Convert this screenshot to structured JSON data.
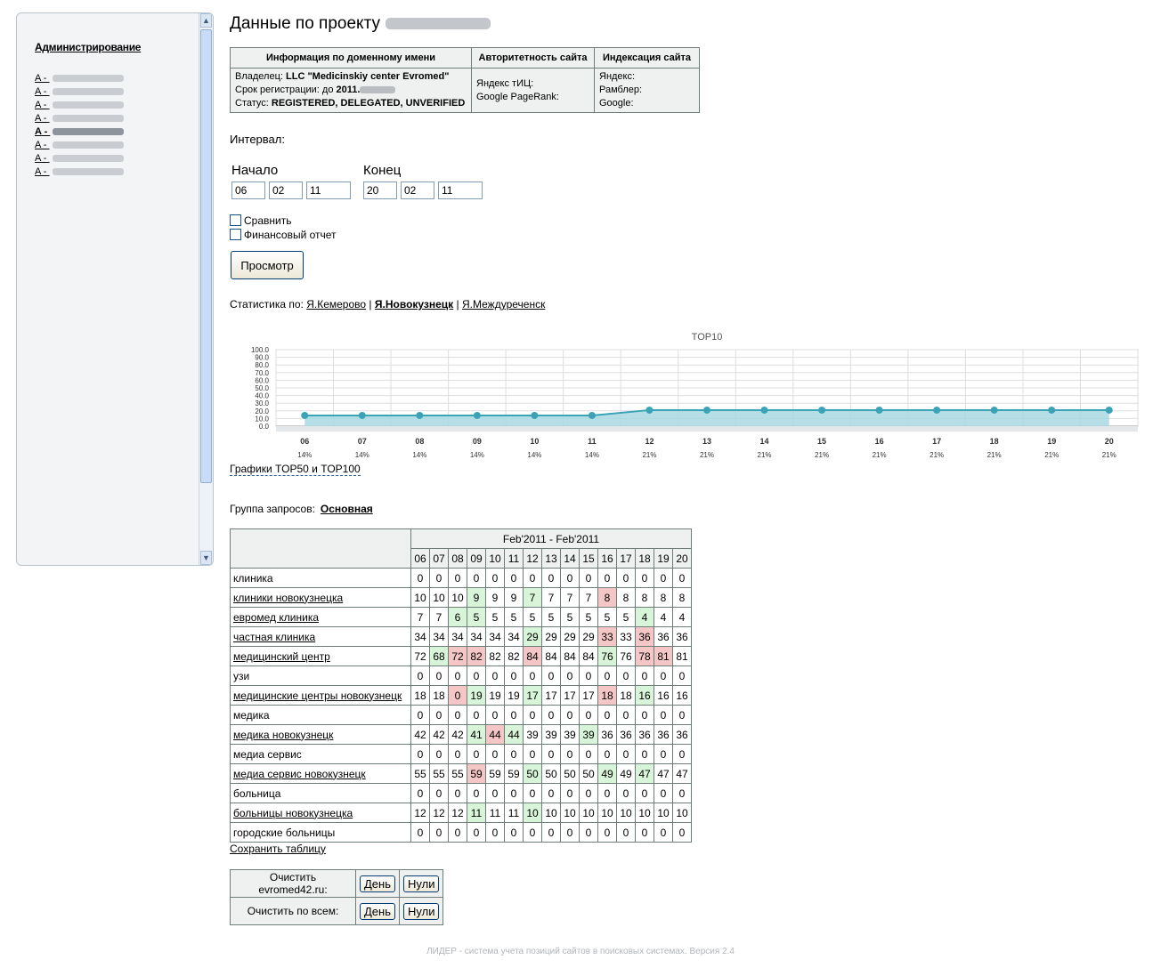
{
  "sidebar": {
    "title": "Администрирование",
    "items": [
      {
        "prefix": "A - ",
        "current": false
      },
      {
        "prefix": "A - ",
        "current": false
      },
      {
        "prefix": "A - ",
        "current": false
      },
      {
        "prefix": "A - ",
        "current": false
      },
      {
        "prefix": "A - ",
        "current": true
      },
      {
        "prefix": "A - ",
        "current": false
      },
      {
        "prefix": "A - ",
        "current": false
      },
      {
        "prefix": "A - ",
        "current": false
      }
    ]
  },
  "page": {
    "title": "Данные по проекту"
  },
  "info": {
    "headers": [
      "Информация по доменному имени",
      "Авторитетность сайта",
      "Индексация сайта"
    ],
    "owner_label": "Владелец:",
    "owner_value": "LLC \"Medicinskiy center Evromed\"",
    "reg_label": "Срок регистрации: до",
    "reg_value": "2011.",
    "status_label": "Статус:",
    "status_value": "REGISTERED, DELEGATED, UNVERIFIED",
    "auth1": "Яндекс тИЦ:",
    "auth2": "Google PageRank:",
    "idx1": "Яндекс:",
    "idx2": "Рамблер:",
    "idx3": "Google:"
  },
  "interval": {
    "label": "Интервал:",
    "start_label": "Начало",
    "end_label": "Конец",
    "start": [
      "06",
      "02",
      "11"
    ],
    "end": [
      "20",
      "02",
      "11"
    ],
    "compare_label": "Сравнить",
    "finance_label": "Финансовый отчет",
    "view_button": "Просмотр"
  },
  "stats": {
    "prefix": "Статистика по:",
    "links": [
      "Я.Кемерово",
      "Я.Новокузнецк",
      "Я.Междуреченск"
    ],
    "sep": "|"
  },
  "chart_data": {
    "type": "area",
    "title": "TOP10",
    "x": [
      "06",
      "07",
      "08",
      "09",
      "10",
      "11",
      "12",
      "13",
      "14",
      "15",
      "16",
      "17",
      "18",
      "19",
      "20"
    ],
    "values": [
      14,
      14,
      14,
      14,
      14,
      14,
      21,
      21,
      21,
      21,
      21,
      21,
      21,
      21,
      21
    ],
    "point_labels": [
      "14%",
      "14%",
      "14%",
      "14%",
      "14%",
      "14%",
      "21%",
      "21%",
      "21%",
      "21%",
      "21%",
      "21%",
      "21%",
      "21%",
      "21%"
    ],
    "ylim": [
      0,
      100
    ],
    "yticks": [
      "0.0",
      "10.0",
      "20.0",
      "30.0",
      "40.0",
      "50.0",
      "60.0",
      "70.0",
      "80.0",
      "90.0",
      "100.0"
    ],
    "grid": true,
    "color": "#3aa3b8",
    "fill": "#a8d8e2"
  },
  "top_links": "Графики TOP50 и TOP100",
  "group": {
    "label": "Группа запросов:",
    "value": "Основная"
  },
  "table": {
    "period": "Feb'2011 - Feb'2011",
    "days": [
      "06",
      "07",
      "08",
      "09",
      "10",
      "11",
      "12",
      "13",
      "14",
      "15",
      "16",
      "17",
      "18",
      "19",
      "20"
    ],
    "rows": [
      {
        "kw": "клиника",
        "link": false,
        "v": [
          0,
          0,
          0,
          0,
          0,
          0,
          0,
          0,
          0,
          0,
          0,
          0,
          0,
          0,
          0
        ],
        "c": "..............."
      },
      {
        "kw": "клиники новокузнецка",
        "link": true,
        "v": [
          10,
          10,
          10,
          9,
          9,
          9,
          7,
          7,
          7,
          7,
          8,
          8,
          8,
          8,
          8
        ],
        "c": "...g..g...r...."
      },
      {
        "kw": "евромед клиника",
        "link": true,
        "v": [
          7,
          7,
          6,
          5,
          5,
          5,
          5,
          5,
          5,
          5,
          5,
          5,
          4,
          4,
          4
        ],
        "c": "..gg........g.."
      },
      {
        "kw": "частная клиника",
        "link": true,
        "v": [
          34,
          34,
          34,
          34,
          34,
          34,
          29,
          29,
          29,
          29,
          33,
          33,
          36,
          36,
          36
        ],
        "c": "......g...r.r.."
      },
      {
        "kw": "медицинский центр",
        "link": true,
        "v": [
          72,
          68,
          72,
          82,
          82,
          82,
          84,
          84,
          84,
          84,
          76,
          76,
          78,
          81,
          81
        ],
        "c": ".grr..r...g.rr."
      },
      {
        "kw": "узи",
        "link": false,
        "v": [
          0,
          0,
          0,
          0,
          0,
          0,
          0,
          0,
          0,
          0,
          0,
          0,
          0,
          0,
          0
        ],
        "c": "..............."
      },
      {
        "kw": "медицинские центры новокузнецк",
        "link": true,
        "v": [
          18,
          18,
          0,
          19,
          19,
          19,
          17,
          17,
          17,
          17,
          18,
          18,
          16,
          16,
          16
        ],
        "c": "..rg..g...r.g.."
      },
      {
        "kw": "медика",
        "link": false,
        "v": [
          0,
          0,
          0,
          0,
          0,
          0,
          0,
          0,
          0,
          0,
          0,
          0,
          0,
          0,
          0
        ],
        "c": "..............."
      },
      {
        "kw": "медика новокузнецк",
        "link": true,
        "v": [
          42,
          42,
          42,
          41,
          44,
          44,
          39,
          39,
          39,
          39,
          36,
          36,
          36,
          36,
          36
        ],
        "c": "...grg...g....."
      },
      {
        "kw": "медиа сервис",
        "link": false,
        "v": [
          0,
          0,
          0,
          0,
          0,
          0,
          0,
          0,
          0,
          0,
          0,
          0,
          0,
          0,
          0
        ],
        "c": "..............."
      },
      {
        "kw": "медиа сервис новокузнецк",
        "link": true,
        "v": [
          55,
          55,
          55,
          59,
          59,
          59,
          50,
          50,
          50,
          50,
          49,
          49,
          47,
          47,
          47
        ],
        "c": "...r..g...g.g.."
      },
      {
        "kw": "больница",
        "link": false,
        "v": [
          0,
          0,
          0,
          0,
          0,
          0,
          0,
          0,
          0,
          0,
          0,
          0,
          0,
          0,
          0
        ],
        "c": "..............."
      },
      {
        "kw": "больницы новокузнецка",
        "link": true,
        "v": [
          12,
          12,
          12,
          11,
          11,
          11,
          10,
          10,
          10,
          10,
          10,
          10,
          10,
          10,
          10
        ],
        "c": "...g..g........"
      },
      {
        "kw": "городские больницы",
        "link": false,
        "v": [
          0,
          0,
          0,
          0,
          0,
          0,
          0,
          0,
          0,
          0,
          0,
          0,
          0,
          0,
          0
        ],
        "c": "..............."
      }
    ]
  },
  "save_table": "Сохранить таблицу",
  "clear": {
    "row1_label": "Очистить evromed42.ru:",
    "row2_label": "Очистить по всем:",
    "day_button": "День",
    "zero_button": "Нули"
  },
  "footer": "ЛИДЕР - система учета позиций сайтов в поисковых системах. Версия 2.4"
}
